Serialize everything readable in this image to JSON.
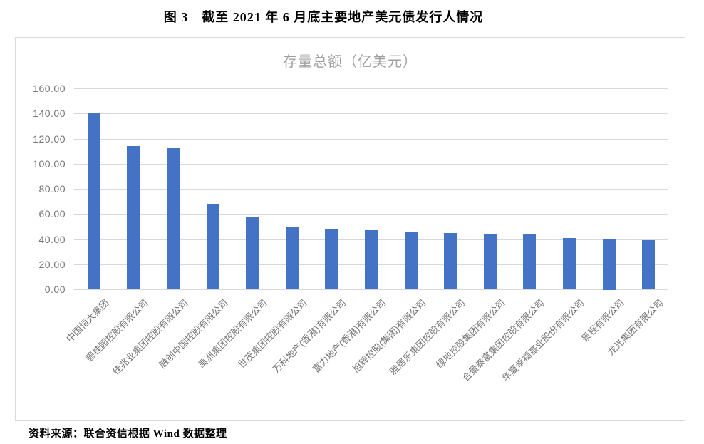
{
  "document": {
    "figure_caption": "图 3　截至 2021 年 6 月底主要地产美元债发行人情况",
    "source_note": "资料来源：联合资信根据 Wind 数据整理"
  },
  "chart_data": {
    "type": "bar",
    "title": "存量总额（亿美元）",
    "categories": [
      "中国恒大集团",
      "碧桂园控股有限公司",
      "佳兆业集团控股有限公司",
      "融创中国控股有限公司",
      "禹洲集团控股有限公司",
      "世茂集团控股有限公司",
      "万科地产(香港)有限公司",
      "富力地产(香港)有限公司",
      "旭辉控股(集团)有限公司",
      "雅居乐集团控股有限公司",
      "绿地控股集团有限公司",
      "合景泰富集团控股有限公司",
      "华夏幸福基业股份有限公司",
      "景程有限公司",
      "龙光集团有限公司"
    ],
    "values": [
      140.2,
      113.9,
      112.6,
      67.9,
      57.1,
      49.5,
      48.3,
      47.2,
      45.5,
      44.6,
      44.4,
      43.8,
      41.0,
      40.0,
      39.2
    ],
    "xlabel": "",
    "ylabel": "",
    "ylim": [
      0,
      160
    ],
    "ytick_step": 20,
    "ytick_decimals": 2,
    "yticks": [
      "0.00",
      "20.00",
      "40.00",
      "60.00",
      "80.00",
      "100.00",
      "120.00",
      "140.00",
      "160.00"
    ],
    "grid": true,
    "legend": "none",
    "colors": {
      "bar": "#4472C4",
      "grid": "#D9D9D9",
      "axis_text": "#757575",
      "title_text": "#A0A0A0",
      "frame_border": "#D9D9D9"
    }
  }
}
